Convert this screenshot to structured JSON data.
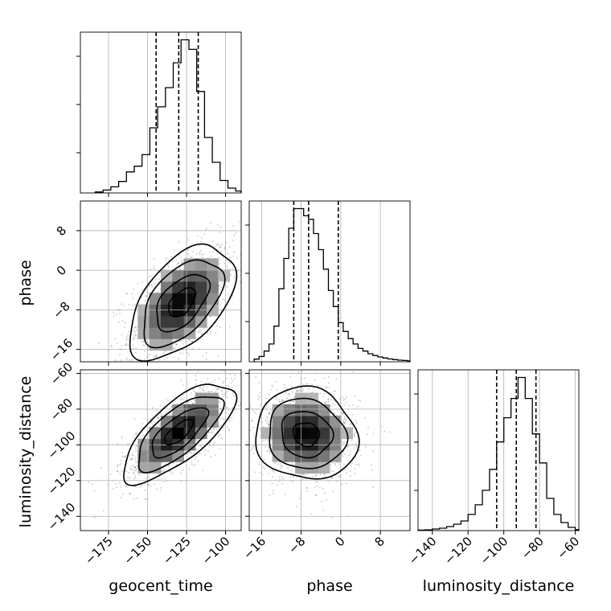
{
  "chart_data": {
    "type": "corner",
    "parameters": [
      "geocent_time",
      "phase",
      "luminosity_distance"
    ],
    "axis_labels": {
      "geocent_time": "geocent_time",
      "phase": "phase",
      "luminosity_distance": "luminosity_distance"
    },
    "ranges": {
      "geocent_time": [
        -193,
        -90
      ],
      "phase": [
        -18.5,
        14
      ],
      "luminosity_distance": [
        -148,
        -58
      ]
    },
    "ticks": {
      "geocent_time": [
        -175,
        -150,
        -125,
        -100
      ],
      "phase": [
        -16,
        -8,
        0,
        8
      ],
      "luminosity_distance": [
        -140,
        -120,
        -100,
        -80,
        -60
      ]
    },
    "tick_labels": {
      "geocent_time": [
        "−175",
        "−150",
        "−125",
        "−100"
      ],
      "phase": [
        "−16",
        "−8",
        "0",
        "8"
      ],
      "luminosity_distance": [
        "−140",
        "−120",
        "−100",
        "−80",
        "−60"
      ]
    },
    "quantiles": {
      "geocent_time": [
        -144.5,
        -130.0,
        -117.5
      ],
      "phase": [
        -9.5,
        -6.5,
        -0.5
      ],
      "luminosity_distance": [
        -104,
        -93,
        -82
      ]
    },
    "histograms": {
      "geocent_time": {
        "edges": [
          -183.5,
          -178.5,
          -173.5,
          -168.5,
          -163.5,
          -158.5,
          -153.5,
          -148.5,
          -143.5,
          -138.5,
          -133.5,
          -128.5,
          -123.5,
          -118.5,
          -113.5,
          -108.5,
          -103.5,
          -98.5,
          -93.5,
          -90
        ],
        "counts": [
          0.5,
          1.5,
          3.2,
          6,
          11,
          14,
          20,
          34,
          45,
          55,
          68,
          80,
          75,
          53,
          29,
          16,
          6.5,
          2.5,
          1
        ]
      },
      "phase": {
        "edges": [
          -17.5,
          -16.5,
          -15.5,
          -14.5,
          -13.5,
          -12.5,
          -11.5,
          -10.5,
          -9.5,
          -8.5,
          -7.5,
          -6.5,
          -5.5,
          -4.5,
          -3.5,
          -2.5,
          -1.5,
          -0.5,
          0.5,
          1.5,
          2.5,
          3.5,
          4.5,
          5.5,
          6.5,
          7.5,
          8.5,
          9.5,
          10.5,
          11.5,
          12.5,
          13.5,
          14
        ],
        "counts": [
          1.5,
          3,
          6,
          10,
          20,
          41,
          58,
          75,
          86,
          86,
          82,
          80,
          72,
          63,
          52,
          40,
          31,
          22,
          17,
          13,
          10,
          7.5,
          6,
          4.5,
          3.5,
          2.7,
          2.1,
          1.6,
          1.2,
          0.9,
          0.7,
          0.5
        ]
      },
      "luminosity_distance": {
        "edges": [
          -148,
          -144,
          -140,
          -136,
          -132,
          -128,
          -124,
          -120,
          -116,
          -112,
          -108,
          -104,
          -100,
          -96,
          -92,
          -88,
          -84,
          -80,
          -76,
          -72,
          -68,
          -64,
          -60,
          -58
        ],
        "counts": [
          0.3,
          0.5,
          1,
          1.5,
          2.5,
          4,
          6,
          10,
          16,
          25,
          38,
          55,
          70,
          82,
          95,
          82,
          60,
          42,
          20,
          10,
          5,
          2,
          0.6
        ]
      }
    },
    "joint": {
      "phase_vs_geocent_time": {
        "mean": [
          -128,
          -6.5
        ],
        "std": [
          17,
          5.8
        ],
        "corr": 0.52
      },
      "luminosity_distance_vs_geocent_time": {
        "mean": [
          -130,
          -93
        ],
        "std": [
          18,
          14
        ],
        "corr": 0.72
      },
      "luminosity_distance_vs_phase": {
        "mean": [
          -7,
          -94
        ],
        "std": [
          5.2,
          13
        ],
        "corr": -0.08
      }
    },
    "contour_levels": [
      0.12,
      0.39,
      0.68,
      0.86
    ],
    "grid": true
  }
}
